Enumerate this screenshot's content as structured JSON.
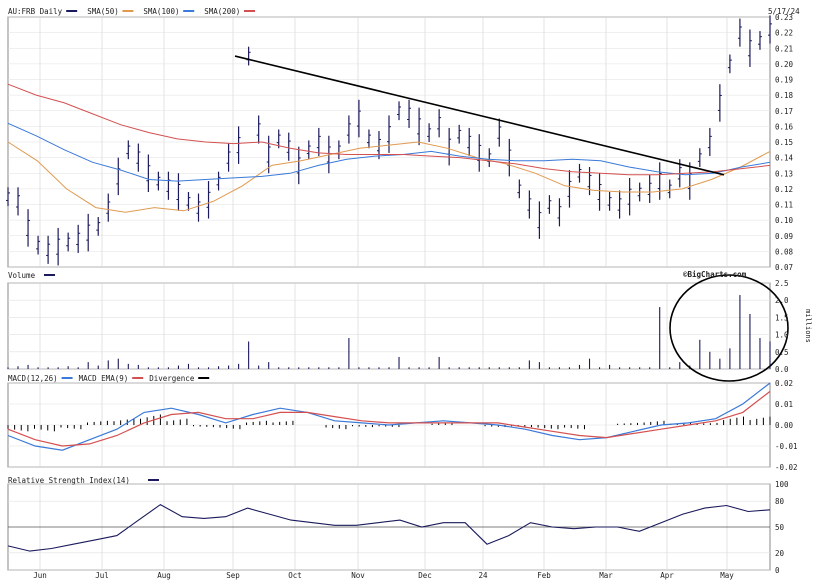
{
  "chart_data": [
    {
      "type": "ohlc",
      "panel": "price",
      "legend": [
        {
          "label": "AU:FRB Daily",
          "color": "#1a1a5c",
          "kind": "bar"
        },
        {
          "label": "SMA(50)",
          "color": "#e09a50"
        },
        {
          "label": "SMA(100)",
          "color": "#3a7ad8"
        },
        {
          "label": "SMA(200)",
          "color": "#d45050"
        }
      ],
      "date_label": "5/17/24",
      "watermark": "©BigCharts.com",
      "ylim": [
        0.07,
        0.23
      ],
      "yticks": [
        "0.23",
        "0.22",
        "0.21",
        "0.20",
        "0.19",
        "0.18",
        "0.17",
        "0.16",
        "0.15",
        "0.14",
        "0.13",
        "0.12",
        "0.11",
        "0.10",
        "0.09",
        "0.08",
        "0.07"
      ],
      "xticks": [
        "Jun",
        "Jul",
        "Aug",
        "Sep",
        "Oct",
        "Nov",
        "Dec",
        "24",
        "Feb",
        "Mar",
        "Apr",
        "May"
      ],
      "series": [
        {
          "name": "Price",
          "values": [
            0.115,
            0.112,
            0.095,
            0.084,
            0.081,
            0.083,
            0.086,
            0.088,
            0.092,
            0.096,
            0.108,
            0.128,
            0.145,
            0.14,
            0.13,
            0.125,
            0.122,
            0.118,
            0.112,
            0.108,
            0.113,
            0.125,
            0.14,
            0.148,
            0.205,
            0.158,
            0.142,
            0.152,
            0.147,
            0.135,
            0.145,
            0.15,
            0.142,
            0.145,
            0.158,
            0.165,
            0.152,
            0.148,
            0.155,
            0.17,
            0.168,
            0.16,
            0.156,
            0.162,
            0.147,
            0.155,
            0.15,
            0.143,
            0.14,
            0.156,
            0.14,
            0.12,
            0.11,
            0.1,
            0.11,
            0.105,
            0.12,
            0.13,
            0.125,
            0.118,
            0.112,
            0.11,
            0.115,
            0.118,
            0.12,
            0.125,
            0.12,
            0.13,
            0.125,
            0.14,
            0.15,
            0.175,
            0.2,
            0.22,
            0.21,
            0.215,
            0.222
          ]
        },
        {
          "name": "SMA(50)",
          "values": [
            0.15,
            0.138,
            0.12,
            0.108,
            0.105,
            0.108,
            0.106,
            0.112,
            0.122,
            0.135,
            0.138,
            0.142,
            0.146,
            0.148,
            0.15,
            0.146,
            0.14,
            0.136,
            0.13,
            0.122,
            0.119,
            0.118,
            0.118,
            0.12,
            0.126,
            0.134,
            0.144
          ]
        },
        {
          "name": "SMA(100)",
          "values": [
            0.162,
            0.154,
            0.145,
            0.137,
            0.132,
            0.126,
            0.125,
            0.126,
            0.127,
            0.128,
            0.13,
            0.135,
            0.139,
            0.141,
            0.142,
            0.144,
            0.141,
            0.139,
            0.138,
            0.138,
            0.139,
            0.138,
            0.134,
            0.131,
            0.129,
            0.13,
            0.134,
            0.137
          ]
        },
        {
          "name": "SMA(200)",
          "values": [
            0.187,
            0.18,
            0.175,
            0.168,
            0.161,
            0.156,
            0.152,
            0.15,
            0.149,
            0.15,
            0.146,
            0.143,
            0.142,
            0.142,
            0.142,
            0.141,
            0.14,
            0.138,
            0.136,
            0.133,
            0.131,
            0.13,
            0.129,
            0.129,
            0.13,
            0.131,
            0.133,
            0.135
          ]
        }
      ],
      "annotation": "downward trendline from the September high to April"
    },
    {
      "type": "bar",
      "panel": "volume",
      "legend": [
        {
          "label": "Volume",
          "color": "#1a1a5c",
          "kind": "bar"
        }
      ],
      "ylabel": "millions",
      "ylim": [
        0,
        2.5
      ],
      "yticks": [
        "2.5",
        "2.0",
        "1.5",
        "1.0",
        "0.5",
        "0.0"
      ],
      "series": [
        {
          "name": "Volume",
          "values": [
            0.05,
            0.08,
            0.12,
            0.05,
            0.05,
            0.05,
            0.08,
            0.05,
            0.2,
            0.1,
            0.25,
            0.3,
            0.15,
            0.12,
            0.05,
            0.05,
            0.05,
            0.1,
            0.15,
            0.05,
            0.05,
            0.08,
            0.1,
            0.15,
            0.8,
            0.1,
            0.2,
            0.05,
            0.05,
            0.05,
            0.05,
            0.05,
            0.05,
            0.05,
            0.9,
            0.05,
            0.05,
            0.05,
            0.05,
            0.35,
            0.05,
            0.05,
            0.05,
            0.35,
            0.05,
            0.05,
            0.05,
            0.05,
            0.05,
            0.05,
            0.05,
            0.05,
            0.25,
            0.2,
            0.05,
            0.05,
            0.05,
            0.12,
            0.3,
            0.05,
            0.12,
            0.05,
            0.05,
            0.05,
            0.05,
            1.8,
            0.05,
            0.2,
            0.1,
            0.85,
            0.5,
            0.3,
            0.6,
            2.15,
            1.6,
            0.9,
            0.8
          ]
        }
      ],
      "annotation": "circle around the spring volume surge"
    },
    {
      "type": "line",
      "panel": "macd",
      "legend": [
        {
          "label": "MACD(12,26)",
          "color": "#3a7ad8"
        },
        {
          "label": "MACD EMA(9)",
          "color": "#d45050"
        },
        {
          "label": "Divergence",
          "color": "#000000",
          "kind": "bar"
        }
      ],
      "ylim": [
        -0.02,
        0.02
      ],
      "yticks": [
        "0.02",
        "0.01",
        "0.00",
        "-0.01",
        "-0.02"
      ],
      "series": [
        {
          "name": "MACD(12,26)",
          "values": [
            -0.005,
            -0.01,
            -0.012,
            -0.007,
            -0.002,
            0.006,
            0.008,
            0.005,
            0.001,
            0.005,
            0.008,
            0.006,
            0.002,
            0.001,
            0.0,
            0.001,
            0.002,
            0.001,
            0.0,
            -0.002,
            -0.005,
            -0.007,
            -0.006,
            -0.003,
            0.0,
            0.001,
            0.003,
            0.01,
            0.02
          ]
        },
        {
          "name": "MACD EMA(9)",
          "values": [
            -0.002,
            -0.007,
            -0.01,
            -0.009,
            -0.005,
            0.001,
            0.005,
            0.006,
            0.003,
            0.003,
            0.006,
            0.006,
            0.004,
            0.002,
            0.001,
            0.001,
            0.001,
            0.001,
            0.001,
            -0.001,
            -0.003,
            -0.005,
            -0.006,
            -0.004,
            -0.002,
            0.0,
            0.002,
            0.006,
            0.016
          ]
        },
        {
          "name": "Divergence",
          "values": [
            -0.003,
            -0.003,
            -0.002,
            0.002,
            0.003,
            0.005,
            0.003,
            -0.001,
            -0.002,
            0.002,
            0.002,
            0.0,
            -0.002,
            -0.001,
            -0.001,
            0.0,
            0.001,
            0.0,
            -0.001,
            -0.001,
            -0.002,
            -0.002,
            0.0,
            0.001,
            0.002,
            0.001,
            0.001,
            0.004,
            0.004
          ]
        }
      ]
    },
    {
      "type": "line",
      "panel": "rsi",
      "legend": [
        {
          "label": "Relative Strength Index(14)",
          "color": "#1a1a5c"
        }
      ],
      "ylim": [
        0,
        100
      ],
      "yticks": [
        "100",
        "80",
        "50",
        "20",
        "0"
      ],
      "series": [
        {
          "name": "RSI(14)",
          "values": [
            28,
            22,
            25,
            30,
            35,
            40,
            58,
            76,
            62,
            60,
            62,
            72,
            65,
            58,
            55,
            52,
            52,
            55,
            58,
            50,
            55,
            55,
            30,
            40,
            55,
            50,
            48,
            50,
            50,
            45,
            55,
            65,
            72,
            75,
            68,
            70
          ]
        }
      ]
    }
  ]
}
